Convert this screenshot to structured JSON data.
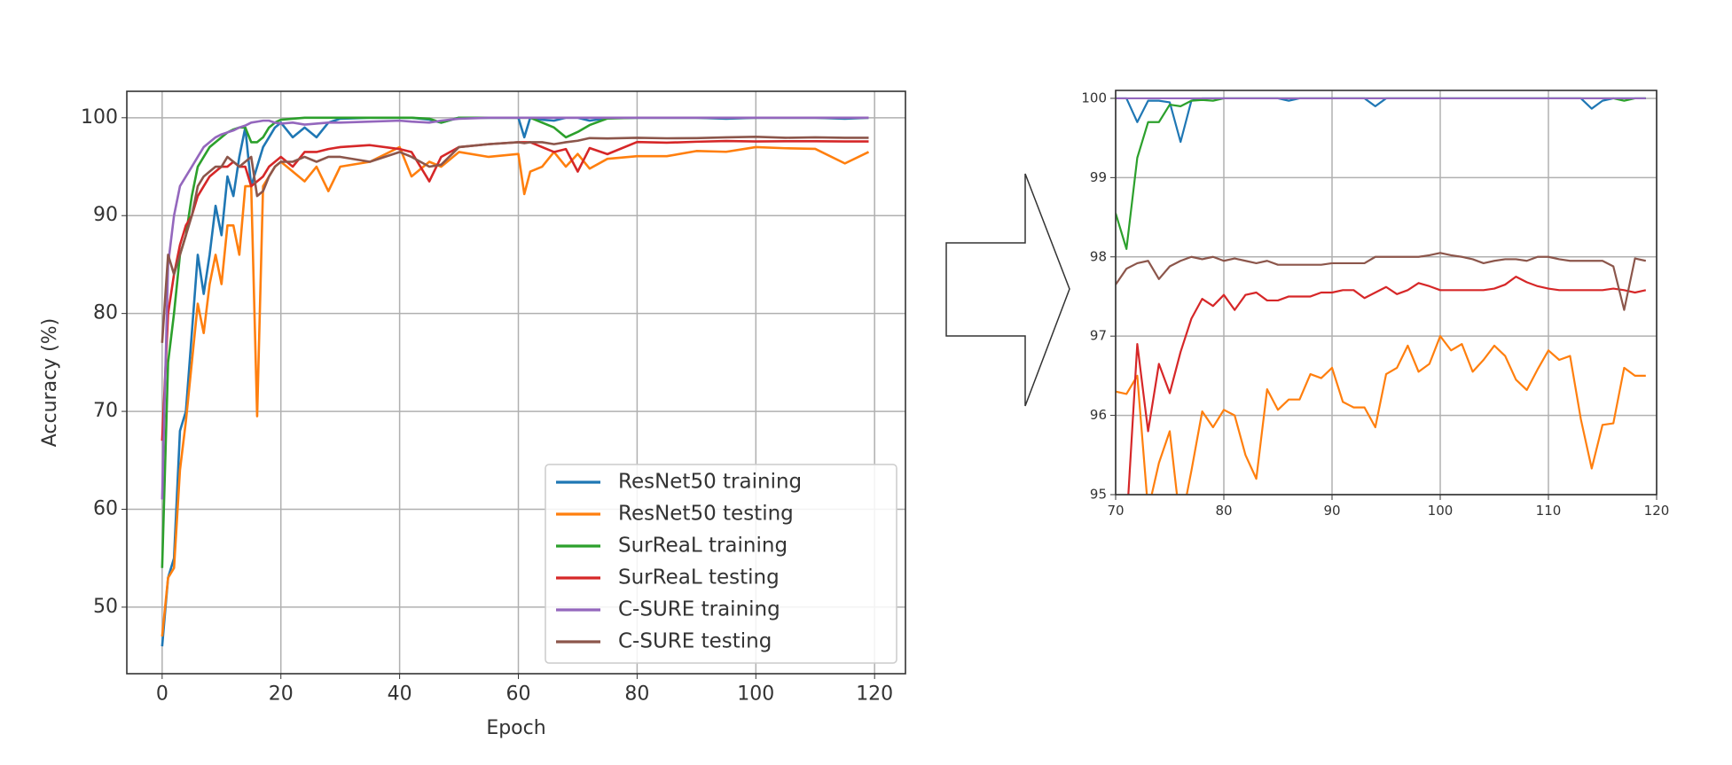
{
  "chart_data": [
    {
      "type": "line",
      "xlabel": "Epoch",
      "ylabel": "Accuracy (%)",
      "x": [
        0,
        1,
        2,
        3,
        4,
        5,
        6,
        7,
        8,
        9,
        10,
        11,
        12,
        13,
        14,
        15,
        16,
        17,
        18,
        19,
        20,
        22,
        24,
        26,
        28,
        30,
        35,
        40,
        42,
        45,
        47,
        50,
        55,
        60,
        61,
        62,
        64,
        66,
        68,
        70,
        72,
        75,
        80,
        85,
        90,
        95,
        100,
        105,
        110,
        115,
        119
      ],
      "xlim": [
        -5.95,
        125.2
      ],
      "ylim": [
        43.2,
        102.7
      ],
      "xticks": [
        0,
        20,
        40,
        60,
        80,
        100,
        120
      ],
      "yticks": [
        50,
        60,
        70,
        80,
        90,
        100
      ],
      "grid": true,
      "legend": "lower right",
      "series": [
        {
          "name": "ResNet50 training",
          "color": "#1f77b4",
          "values": [
            46,
            53,
            55,
            68,
            70,
            78,
            86,
            82,
            86,
            91,
            88,
            94,
            92,
            96,
            99,
            93,
            95,
            97,
            98,
            99,
            99.5,
            98,
            99,
            98,
            99.5,
            99.9,
            100,
            100,
            100,
            99.8,
            99.5,
            100,
            100,
            100,
            98,
            100,
            99.8,
            99.7,
            100,
            100,
            99.7,
            99.95,
            100,
            100,
            100,
            99.9,
            100,
            100,
            100,
            99.9,
            100
          ]
        },
        {
          "name": "ResNet50 testing",
          "color": "#ff7f0e",
          "values": [
            47,
            53,
            54,
            64,
            69,
            75,
            81,
            78,
            83,
            86,
            83,
            89,
            89,
            86,
            93,
            93,
            69.5,
            93,
            94,
            95,
            95.5,
            94.5,
            93.5,
            95,
            92.5,
            95,
            95.5,
            97,
            94,
            95.5,
            95,
            96.5,
            96,
            96.3,
            92.2,
            94.5,
            95,
            96.5,
            95,
            96.3,
            94.8,
            95.8,
            96.07,
            96.07,
            96.6,
            96.52,
            97,
            96.88,
            96.82,
            95.33,
            96.5
          ]
        },
        {
          "name": "SurReaL training",
          "color": "#2ca02c",
          "values": [
            54,
            75,
            80,
            86,
            88,
            92,
            95,
            96,
            97,
            97.5,
            98,
            98.5,
            98.8,
            99,
            99,
            97.5,
            97.5,
            98,
            99,
            99.5,
            99.8,
            99.9,
            100,
            100,
            100,
            100,
            100,
            100,
            100,
            99.9,
            99.5,
            100,
            100,
            100,
            100,
            100,
            99.5,
            99,
            98,
            98.55,
            99.25,
            99.92,
            100,
            100,
            100,
            100,
            100,
            100,
            100,
            100,
            100
          ]
        },
        {
          "name": "SurReaL testing",
          "color": "#d62728",
          "values": [
            67,
            80,
            84,
            87,
            89,
            90,
            92,
            93,
            94,
            94.5,
            95,
            95,
            95.5,
            95,
            95,
            93,
            93.5,
            94,
            95,
            95.5,
            96,
            95,
            96.5,
            96.5,
            96.8,
            97,
            97.2,
            96.8,
            96.5,
            93.5,
            96,
            97,
            97.3,
            97.5,
            97.5,
            97.5,
            97,
            96.5,
            96.8,
            94.5,
            96.9,
            96.28,
            97.52,
            97.45,
            97.55,
            97.62,
            97.58,
            97.6,
            97.6,
            97.58,
            97.58
          ]
        },
        {
          "name": "C-SURE training",
          "color": "#9467bd",
          "values": [
            61,
            85,
            90,
            93,
            94,
            95,
            96,
            97,
            97.5,
            98,
            98.3,
            98.5,
            98.7,
            99,
            99.2,
            99.5,
            99.6,
            99.7,
            99.7,
            99.5,
            99.4,
            99.5,
            99.3,
            99.4,
            99.5,
            99.5,
            99.6,
            99.7,
            99.6,
            99.5,
            99.7,
            99.9,
            100,
            100,
            100,
            100,
            100,
            100,
            100,
            100,
            100,
            100,
            100,
            100,
            100,
            100,
            100,
            100,
            100,
            100,
            100
          ]
        },
        {
          "name": "C-SURE testing",
          "color": "#8c564b",
          "values": [
            77,
            86,
            84,
            86,
            88,
            90,
            93,
            94,
            94.5,
            95,
            95,
            96,
            95.5,
            95,
            95.5,
            96,
            92,
            92.5,
            94,
            95,
            95.5,
            95.5,
            96,
            95.5,
            96,
            96,
            95.5,
            96.5,
            96,
            95,
            95.2,
            97,
            97.3,
            97.5,
            97.4,
            97.5,
            97.5,
            97.3,
            97.5,
            97.65,
            97.92,
            97.88,
            97.95,
            97.9,
            97.92,
            98,
            98.05,
            97.95,
            98,
            97.95,
            97.95
          ]
        }
      ]
    },
    {
      "type": "line",
      "x": [
        70,
        71,
        72,
        73,
        74,
        75,
        76,
        77,
        78,
        79,
        80,
        81,
        82,
        83,
        84,
        85,
        86,
        87,
        88,
        89,
        90,
        91,
        92,
        93,
        94,
        95,
        96,
        97,
        98,
        99,
        100,
        101,
        102,
        103,
        104,
        105,
        106,
        107,
        108,
        109,
        110,
        111,
        112,
        113,
        114,
        115,
        116,
        117,
        118,
        119
      ],
      "xlim": [
        70,
        120
      ],
      "ylim": [
        95,
        100.1
      ],
      "xticks": [
        70,
        80,
        90,
        100,
        110,
        120
      ],
      "yticks": [
        95,
        96,
        97,
        98,
        99,
        100
      ],
      "grid": true,
      "series": [
        {
          "color": "#1f77b4",
          "values": [
            100,
            100,
            99.7,
            99.97,
            99.97,
            99.95,
            99.45,
            99.97,
            100,
            100,
            100,
            100,
            100,
            100,
            100,
            100,
            99.97,
            100,
            100,
            100,
            100,
            100,
            100,
            100,
            99.9,
            100,
            100,
            100,
            100,
            100,
            100,
            100,
            100,
            100,
            100,
            100,
            100,
            100,
            100,
            100,
            100,
            100,
            100,
            100,
            99.87,
            99.97,
            100,
            100,
            100,
            100
          ]
        },
        {
          "color": "#ff7f0e",
          "values": [
            96.3,
            96.27,
            96.5,
            94.8,
            95.4,
            95.8,
            94.6,
            95.3,
            96.05,
            95.85,
            96.07,
            96.0,
            95.5,
            95.2,
            96.33,
            96.07,
            96.2,
            96.2,
            96.52,
            96.47,
            96.6,
            96.17,
            96.1,
            96.1,
            95.85,
            96.52,
            96.6,
            96.88,
            96.55,
            96.65,
            97.0,
            96.82,
            96.9,
            96.55,
            96.7,
            96.88,
            96.75,
            96.45,
            96.32,
            96.58,
            96.82,
            96.7,
            96.75,
            95.95,
            95.33,
            95.88,
            95.9,
            96.6,
            96.5,
            96.5
          ]
        },
        {
          "color": "#2ca02c",
          "values": [
            98.55,
            98.1,
            99.25,
            99.7,
            99.7,
            99.92,
            99.9,
            99.97,
            99.98,
            99.97,
            100,
            100,
            100,
            100,
            100,
            100,
            100,
            100,
            100,
            100,
            100,
            100,
            100,
            100,
            100,
            100,
            100,
            100,
            100,
            100,
            100,
            100,
            100,
            100,
            100,
            100,
            100,
            100,
            100,
            100,
            100,
            100,
            100,
            100,
            100,
            100,
            100,
            99.97,
            100,
            100
          ]
        },
        {
          "color": "#d62728",
          "values": [
            94.5,
            94.6,
            96.9,
            95.8,
            96.65,
            96.28,
            96.8,
            97.22,
            97.47,
            97.38,
            97.52,
            97.33,
            97.52,
            97.55,
            97.45,
            97.45,
            97.5,
            97.5,
            97.5,
            97.55,
            97.55,
            97.58,
            97.58,
            97.48,
            97.55,
            97.62,
            97.53,
            97.58,
            97.67,
            97.63,
            97.58,
            97.58,
            97.58,
            97.58,
            97.58,
            97.6,
            97.65,
            97.75,
            97.68,
            97.63,
            97.6,
            97.58,
            97.58,
            97.58,
            97.58,
            97.58,
            97.6,
            97.58,
            97.55,
            97.58
          ]
        },
        {
          "color": "#9467bd",
          "values": [
            100,
            100,
            100,
            100,
            100,
            100,
            100,
            100,
            100,
            100,
            100,
            100,
            100,
            100,
            100,
            100,
            100,
            100,
            100,
            100,
            100,
            100,
            100,
            100,
            100,
            100,
            100,
            100,
            100,
            100,
            100,
            100,
            100,
            100,
            100,
            100,
            100,
            100,
            100,
            100,
            100,
            100,
            100,
            100,
            100,
            100,
            100,
            100,
            100,
            100
          ]
        },
        {
          "color": "#8c564b",
          "values": [
            97.65,
            97.85,
            97.92,
            97.95,
            97.72,
            97.88,
            97.95,
            98.0,
            97.97,
            98.0,
            97.95,
            97.98,
            97.95,
            97.92,
            97.95,
            97.9,
            97.9,
            97.9,
            97.9,
            97.9,
            97.92,
            97.92,
            97.92,
            97.92,
            98,
            98,
            98,
            98,
            98,
            98.02,
            98.05,
            98.02,
            98,
            97.97,
            97.92,
            97.95,
            97.97,
            97.97,
            97.95,
            98,
            98,
            97.97,
            97.95,
            97.95,
            97.95,
            97.95,
            97.88,
            97.33,
            97.98,
            97.95
          ]
        }
      ]
    }
  ]
}
